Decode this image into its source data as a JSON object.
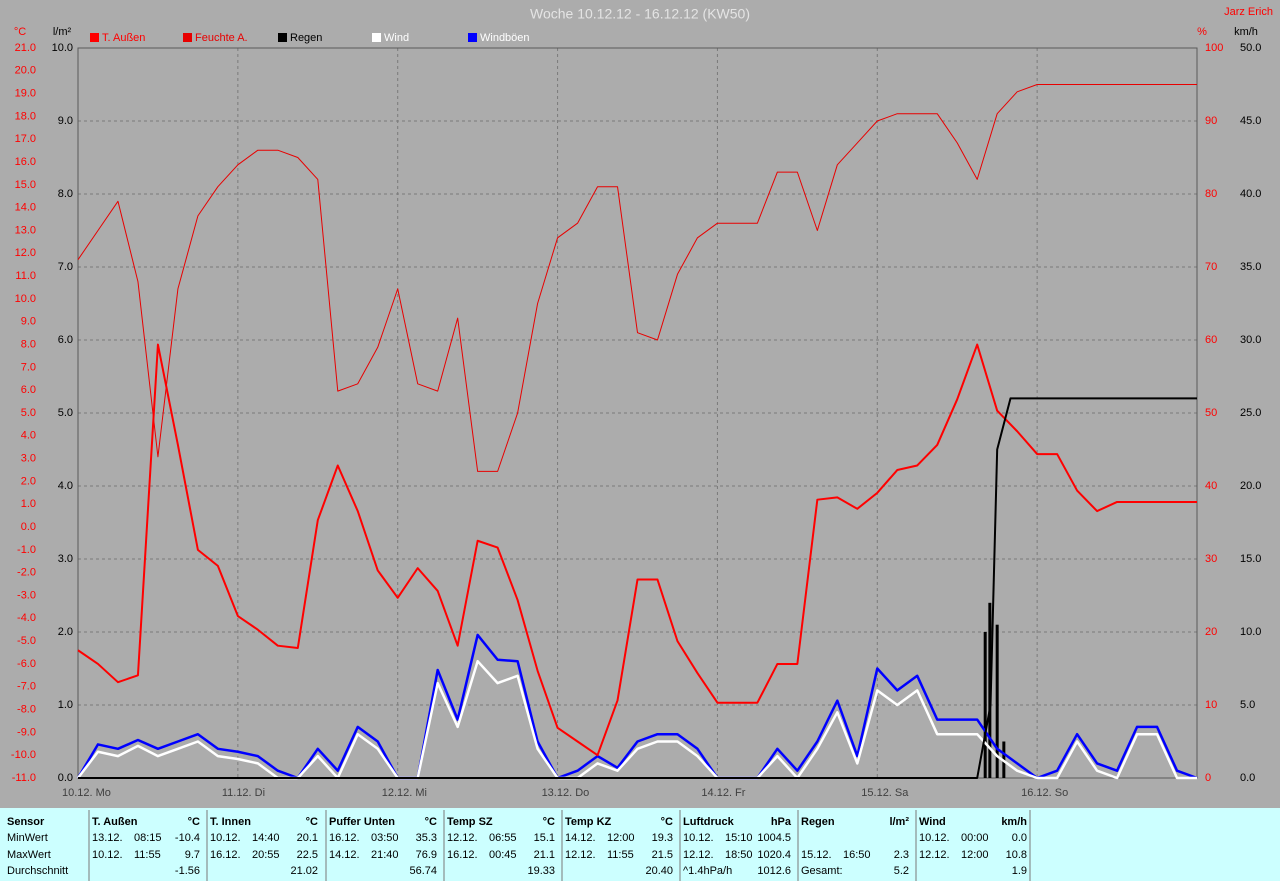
{
  "header": {
    "title": "Woche 10.12.12 - 16.12.12 (KW50)",
    "author": "Jarz Erich"
  },
  "chart_data": {
    "type": "line",
    "grid": true,
    "grid_axis": "rain",
    "xlim": [
      0,
      168
    ],
    "xticks": [
      {
        "value": 0,
        "label": "10.12. Mo"
      },
      {
        "value": 24,
        "label": "11.12. Di"
      },
      {
        "value": 48,
        "label": "12.12. Mi"
      },
      {
        "value": 72,
        "label": "13.12. Do"
      },
      {
        "value": 96,
        "label": "14.12. Fr"
      },
      {
        "value": 120,
        "label": "15.12. Sa"
      },
      {
        "value": 144,
        "label": "16.12. So"
      }
    ],
    "x": [
      0,
      3,
      6,
      9,
      12,
      15,
      18,
      21,
      24,
      27,
      30,
      33,
      36,
      39,
      42,
      45,
      48,
      51,
      54,
      57,
      60,
      63,
      66,
      69,
      72,
      75,
      78,
      81,
      84,
      87,
      90,
      93,
      96,
      99,
      102,
      105,
      108,
      111,
      114,
      117,
      120,
      123,
      126,
      129,
      132,
      135,
      138,
      141,
      144,
      147,
      150,
      153,
      156,
      159,
      162,
      165,
      168
    ],
    "axes": {
      "temp": {
        "label": "°C",
        "color": "#ff0000",
        "lim": [
          -11,
          21
        ],
        "ticks": [
          {
            "value": -11,
            "label": "-11.0"
          },
          {
            "value": -10,
            "label": "-10.0"
          },
          {
            "value": -9,
            "label": "-9.0"
          },
          {
            "value": -8,
            "label": "-8.0"
          },
          {
            "value": -7,
            "label": "-7.0"
          },
          {
            "value": -6,
            "label": "-6.0"
          },
          {
            "value": -5,
            "label": "-5.0"
          },
          {
            "value": -4,
            "label": "-4.0"
          },
          {
            "value": -3,
            "label": "-3.0"
          },
          {
            "value": -2,
            "label": "-2.0"
          },
          {
            "value": -1,
            "label": "-1.0"
          },
          {
            "value": 0,
            "label": "0.0"
          },
          {
            "value": 1,
            "label": "1.0"
          },
          {
            "value": 2,
            "label": "2.0"
          },
          {
            "value": 3,
            "label": "3.0"
          },
          {
            "value": 4,
            "label": "4.0"
          },
          {
            "value": 5,
            "label": "5.0"
          },
          {
            "value": 6,
            "label": "6.0"
          },
          {
            "value": 7,
            "label": "7.0"
          },
          {
            "value": 8,
            "label": "8.0"
          },
          {
            "value": 9,
            "label": "9.0"
          },
          {
            "value": 10,
            "label": "10.0"
          },
          {
            "value": 11,
            "label": "11.0"
          },
          {
            "value": 12,
            "label": "12.0"
          },
          {
            "value": 13,
            "label": "13.0"
          },
          {
            "value": 14,
            "label": "14.0"
          },
          {
            "value": 15,
            "label": "15.0"
          },
          {
            "value": 16,
            "label": "16.0"
          },
          {
            "value": 17,
            "label": "17.0"
          },
          {
            "value": 18,
            "label": "18.0"
          },
          {
            "value": 19,
            "label": "19.0"
          },
          {
            "value": 20,
            "label": "20.0"
          },
          {
            "value": 21,
            "label": "21.0"
          }
        ]
      },
      "rain": {
        "label": "l/m²",
        "color": "#000000",
        "lim": [
          0,
          10
        ],
        "ticks": [
          {
            "value": 0,
            "label": "0.0"
          },
          {
            "value": 1,
            "label": "1.0"
          },
          {
            "value": 2,
            "label": "2.0"
          },
          {
            "value": 3,
            "label": "3.0"
          },
          {
            "value": 4,
            "label": "4.0"
          },
          {
            "value": 5,
            "label": "5.0"
          },
          {
            "value": 6,
            "label": "6.0"
          },
          {
            "value": 7,
            "label": "7.0"
          },
          {
            "value": 8,
            "label": "8.0"
          },
          {
            "value": 9,
            "label": "9.0"
          },
          {
            "value": 10,
            "label": "10.0"
          }
        ]
      },
      "hum": {
        "label": "%",
        "color": "#ff0000",
        "lim": [
          0,
          100
        ],
        "ticks": [
          0,
          10,
          20,
          30,
          40,
          50,
          60,
          70,
          80,
          90,
          100
        ]
      },
      "wind": {
        "label": "km/h",
        "color": "#000000",
        "lim": [
          0,
          50
        ],
        "ticks": [
          {
            "value": 0,
            "label": "0.0"
          },
          {
            "value": 5,
            "label": "5.0"
          },
          {
            "value": 10,
            "label": "10.0"
          },
          {
            "value": 15,
            "label": "15.0"
          },
          {
            "value": 20,
            "label": "20.0"
          },
          {
            "value": 25,
            "label": "25.0"
          },
          {
            "value": 30,
            "label": "30.0"
          },
          {
            "value": 35,
            "label": "35.0"
          },
          {
            "value": 40,
            "label": "40.0"
          },
          {
            "value": 45,
            "label": "45.0"
          },
          {
            "value": 50,
            "label": "50.0"
          }
        ]
      }
    },
    "series": [
      {
        "name": "T. Außen",
        "color": "#ff0000",
        "width": 2,
        "axis": "temp",
        "values": [
          -5.4,
          -6.0,
          -6.8,
          -6.5,
          8.0,
          3.6,
          -1.0,
          -1.7,
          -3.9,
          -4.5,
          -5.2,
          -5.3,
          0.3,
          2.7,
          0.7,
          -1.9,
          -3.1,
          -1.8,
          -2.8,
          -5.2,
          -0.6,
          -0.9,
          -3.2,
          -6.3,
          -8.8,
          -9.4,
          -10.0,
          -7.6,
          -2.3,
          -2.3,
          -5.0,
          -6.4,
          -7.7,
          -7.7,
          -7.7,
          -6.0,
          -6.0,
          1.2,
          1.3,
          0.8,
          1.5,
          2.5,
          2.7,
          3.6,
          5.6,
          8.0,
          5.1,
          4.2,
          3.2,
          3.2,
          1.6,
          0.7,
          1.1,
          1.1,
          1.1,
          1.1,
          1.1
        ]
      },
      {
        "name": "Feuchte A.",
        "color": "#e80000",
        "width": 1,
        "axis": "hum",
        "values": [
          71,
          75,
          79,
          68,
          44,
          67,
          77,
          81,
          84,
          86,
          86,
          85,
          82,
          53,
          54,
          59,
          67,
          54,
          53,
          63,
          42,
          42,
          50,
          65,
          74,
          76,
          81,
          81,
          61,
          60,
          69,
          74,
          76,
          76,
          76,
          83,
          83,
          75,
          84,
          87,
          90,
          91,
          91,
          91,
          87,
          82,
          91,
          94,
          95,
          95,
          95,
          95,
          95,
          95,
          95,
          95,
          95
        ]
      },
      {
        "name": "Regen",
        "color": "#000000",
        "width": 2,
        "axis": "rain",
        "x": [
          0,
          135,
          137,
          138,
          140,
          168
        ],
        "values": [
          0,
          0,
          1.0,
          4.5,
          5.2,
          5.2
        ],
        "bars": {
          "x": [
            136.2,
            136.9,
            138.0,
            139.0
          ],
          "values": [
            2.0,
            2.4,
            2.1,
            0.5
          ]
        }
      },
      {
        "name": "Wind",
        "color": "#ffffff",
        "width": 2.5,
        "axis": "wind",
        "values": [
          0,
          1.8,
          1.5,
          2.2,
          1.5,
          2.0,
          2.5,
          1.5,
          1.3,
          1.0,
          0,
          0,
          1.5,
          0,
          3.0,
          2.0,
          0,
          0,
          6.5,
          3.5,
          8.0,
          6.5,
          7.0,
          2.0,
          0,
          0,
          1.0,
          0.5,
          2.0,
          2.5,
          2.5,
          1.5,
          0,
          0,
          0,
          1.5,
          0,
          2.0,
          4.5,
          1.0,
          6.0,
          5.0,
          6.0,
          3.0,
          3.0,
          3.0,
          1.5,
          0.5,
          0,
          0,
          2.5,
          0.5,
          0,
          3.0,
          3.0,
          0,
          0
        ]
      },
      {
        "name": "Windböen",
        "color": "#0000ff",
        "label_color": "#ffffff",
        "width": 2.5,
        "axis": "wind",
        "values": [
          0,
          2.3,
          2.0,
          2.6,
          2.0,
          2.5,
          3.0,
          2.0,
          1.8,
          1.5,
          0.5,
          0,
          2.0,
          0.5,
          3.5,
          2.5,
          0,
          0,
          7.4,
          4.0,
          9.8,
          8.1,
          8.0,
          2.5,
          0,
          0.5,
          1.5,
          0.7,
          2.5,
          3.0,
          3.0,
          2.0,
          0,
          0,
          0,
          2.0,
          0.5,
          2.5,
          5.3,
          1.5,
          7.5,
          6.0,
          7.0,
          4.0,
          4.0,
          4.0,
          2.0,
          1.0,
          0,
          0.5,
          3.0,
          1.0,
          0.5,
          3.5,
          3.5,
          0.5,
          0
        ]
      }
    ]
  },
  "stats": {
    "row_labels": [
      "Sensor",
      "MinWert",
      "MaxWert",
      "Durchschnitt"
    ],
    "groups": [
      {
        "name": "T. Außen",
        "unit": "°C",
        "min": {
          "date": "13.12.",
          "time": "08:15",
          "value": "-10.4"
        },
        "max": {
          "date": "10.12.",
          "time": "11:55",
          "value": "9.7"
        },
        "avg": {
          "value": "-1.56"
        }
      },
      {
        "name": "T. Innen",
        "unit": "°C",
        "min": {
          "date": "10.12.",
          "time": "14:40",
          "value": "20.1"
        },
        "max": {
          "date": "16.12.",
          "time": "20:55",
          "value": "22.5"
        },
        "avg": {
          "value": "21.02"
        }
      },
      {
        "name": "Puffer Unten",
        "unit": "°C",
        "min": {
          "date": "16.12.",
          "time": "03:50",
          "value": "35.3"
        },
        "max": {
          "date": "14.12.",
          "time": "21:40",
          "value": "76.9"
        },
        "avg": {
          "value": "56.74"
        }
      },
      {
        "name": "Temp SZ",
        "unit": "°C",
        "min": {
          "date": "12.12.",
          "time": "06:55",
          "value": "15.1"
        },
        "max": {
          "date": "16.12.",
          "time": "00:45",
          "value": "21.1"
        },
        "avg": {
          "value": "19.33"
        }
      },
      {
        "name": "Temp KZ",
        "unit": "°C",
        "min": {
          "date": "14.12.",
          "time": "12:00",
          "value": "19.3"
        },
        "max": {
          "date": "12.12.",
          "time": "11:55",
          "value": "21.5"
        },
        "avg": {
          "value": "20.40"
        }
      },
      {
        "name": "Luftdruck",
        "unit": "hPa",
        "min": {
          "date": "10.12.",
          "time": "15:10",
          "value": "1004.5"
        },
        "max": {
          "date": "12.12.",
          "time": "18:50",
          "value": "1020.4"
        },
        "avg": {
          "note": "^1.4hPa/h",
          "value": "1012.6"
        }
      },
      {
        "name": "Regen",
        "unit": "l/m²",
        "max": {
          "date": "15.12.",
          "time": "16:50",
          "value": "2.3"
        },
        "avg": {
          "note": "Gesamt:",
          "value": "5.2"
        }
      },
      {
        "name": "Wind",
        "unit": "km/h",
        "min": {
          "date": "10.12.",
          "time": "00:00",
          "value": "0.0"
        },
        "max": {
          "date": "12.12.",
          "time": "12:00",
          "value": "10.8"
        },
        "avg": {
          "value": "1.9"
        }
      }
    ]
  }
}
